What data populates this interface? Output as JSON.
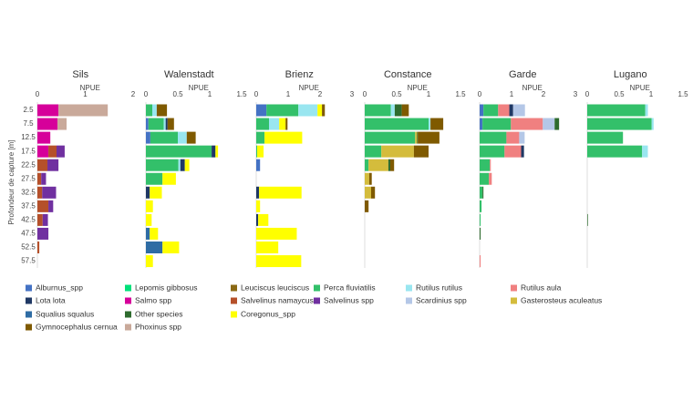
{
  "chart_data": {
    "type": "bar",
    "orientation": "horizontal",
    "y_label": "Profondeur de capture [m]",
    "categories": [
      "2.5",
      "7.5",
      "12.5",
      "17.5",
      "22.5",
      "27.5",
      "32.5",
      "37.5",
      "42.5",
      "47.5",
      "52.5",
      "57.5"
    ],
    "series": [
      {
        "name": "Alburnus_spp",
        "color": "#4472c4"
      },
      {
        "name": "Lepomis gibbosus",
        "color": "#00e07a"
      },
      {
        "name": "Leuciscus leuciscus",
        "color": "#8b6914"
      },
      {
        "name": "Perca fluviatilis",
        "color": "#33c06a"
      },
      {
        "name": "Rutilus rutilus",
        "color": "#99e6f0"
      },
      {
        "name": "Rutilus aula",
        "color": "#f08080"
      },
      {
        "name": "Lota lota",
        "color": "#1f3864"
      },
      {
        "name": "Salmo spp",
        "color": "#d6009a"
      },
      {
        "name": "Salvelinus namaycush",
        "color": "#b5502a"
      },
      {
        "name": "Salvelinus spp",
        "color": "#7030a0"
      },
      {
        "name": "Scardinius spp",
        "color": "#b4c7e7"
      },
      {
        "name": "Gasterosteus aculeatus",
        "color": "#d4bc3c"
      },
      {
        "name": "Squalius squalus",
        "color": "#2e6ca4"
      },
      {
        "name": "Other species",
        "color": "#2e6b2e"
      },
      {
        "name": "Coregonus_spp",
        "color": "#ffff00"
      },
      {
        "name": "Gymnocephalus cernua",
        "color": "#7f5a00"
      },
      {
        "name": "Phoxinus spp",
        "color": "#c9a99a"
      }
    ],
    "panels": [
      {
        "title": "Sils",
        "x_label": "NPUE",
        "xlim": [
          0,
          2
        ],
        "xticks": [
          0,
          1,
          2
        ],
        "values": [
          null,
          null,
          null,
          null,
          null,
          null,
          null,
          [
            0.44,
            0.42,
            0.27,
            0.23,
            null,
            null,
            null,
            null,
            null,
            null,
            null,
            null
          ],
          [
            null,
            null,
            null,
            0.17,
            0.21,
            0.08,
            0.1,
            0.23,
            0.11,
            null,
            0.04,
            null
          ],
          [
            null,
            null,
            null,
            0.17,
            0.23,
            0.1,
            0.29,
            0.1,
            0.11,
            0.23,
            null,
            null
          ],
          null,
          null,
          null,
          null,
          null,
          null,
          [
            1.03,
            0.19,
            null,
            null,
            null,
            null,
            null,
            null,
            null,
            null,
            null,
            null
          ]
        ]
      },
      {
        "title": "Walenstadt",
        "x_label": "NPUE",
        "xlim": [
          0,
          1.5
        ],
        "xticks": [
          0,
          0.5,
          1,
          1.5
        ],
        "values": [
          [
            null,
            0.04,
            0.07,
            null,
            null,
            null,
            null,
            null,
            null,
            null,
            null,
            null
          ],
          null,
          null,
          [
            0.1,
            0.24,
            0.43,
            1.03,
            0.51,
            0.26,
            null,
            null,
            null,
            null,
            null,
            null
          ],
          [
            0.07,
            0.03,
            0.14,
            null,
            0.03,
            null,
            null,
            null,
            null,
            null,
            null,
            null
          ],
          null,
          [
            null,
            0.03,
            null,
            0.06,
            0.07,
            null,
            0.06,
            null,
            null,
            null,
            null,
            null
          ],
          null,
          null,
          null,
          null,
          null,
          [
            null,
            null,
            null,
            null,
            null,
            null,
            null,
            null,
            null,
            0.06,
            0.26,
            null
          ],
          null,
          [
            null,
            null,
            null,
            0.04,
            0.07,
            0.21,
            0.19,
            0.11,
            0.09,
            0.13,
            0.26,
            0.11
          ],
          [
            0.16,
            0.1,
            0.14,
            null,
            null,
            null,
            null,
            null,
            null,
            null,
            null,
            null
          ],
          null
        ]
      },
      {
        "title": "Brienz",
        "x_label": "NPUE",
        "xlim": [
          0,
          3
        ],
        "xticks": [
          0,
          1,
          2,
          3
        ],
        "values": [
          [
            0.32,
            null,
            null,
            null,
            0.12,
            null,
            null,
            null,
            null,
            null,
            null,
            null
          ],
          null,
          null,
          [
            1.0,
            0.4,
            0.26,
            0.03,
            null,
            null,
            null,
            null,
            null,
            null,
            null,
            null
          ],
          [
            0.6,
            0.32,
            null,
            null,
            null,
            null,
            null,
            null,
            null,
            null,
            null,
            null
          ],
          null,
          [
            null,
            null,
            null,
            null,
            null,
            null,
            0.09,
            null,
            0.06,
            null,
            null,
            null
          ],
          null,
          null,
          null,
          null,
          null,
          null,
          null,
          [
            0.14,
            0.2,
            1.18,
            0.2,
            null,
            null,
            1.33,
            0.12,
            0.32,
            1.27,
            0.69,
            1.41
          ],
          [
            0.09,
            0.06,
            null,
            null,
            null,
            null,
            null,
            null,
            null,
            null,
            null,
            null
          ],
          null
        ]
      },
      {
        "title": "Constance",
        "x_label": "NPUE",
        "xlim": [
          0,
          1.5
        ],
        "xticks": [
          0,
          0.5,
          1,
          1.5
        ],
        "values": [
          null,
          null,
          null,
          [
            0.41,
            1.0,
            0.79,
            0.26,
            0.06,
            null,
            null,
            null,
            null,
            null,
            null,
            null
          ],
          [
            0.06,
            0.03,
            null,
            null,
            null,
            null,
            null,
            null,
            null,
            null,
            null,
            null
          ],
          null,
          null,
          null,
          null,
          null,
          null,
          [
            null,
            null,
            0.03,
            0.51,
            0.31,
            0.07,
            0.1,
            null,
            null,
            null,
            null,
            null
          ],
          null,
          [
            0.11,
            null,
            0.01,
            null,
            0.03,
            null,
            null,
            null,
            null,
            null,
            null,
            null
          ],
          null,
          [
            0.11,
            0.2,
            0.34,
            0.23,
            0.06,
            0.04,
            0.06,
            0.06,
            null,
            null,
            null,
            null
          ],
          null
        ]
      },
      {
        "title": "Garde",
        "x_label": "NPUE",
        "xlim": [
          0,
          3
        ],
        "xticks": [
          0,
          1,
          2,
          3
        ],
        "values": [
          [
            0.12,
            0.09,
            null,
            null,
            null,
            null,
            null,
            null,
            null,
            null,
            null,
            null
          ],
          null,
          null,
          [
            0.46,
            0.89,
            0.84,
            0.78,
            0.32,
            0.29,
            0.09,
            0.06,
            0.03,
            null,
            null,
            null
          ],
          null,
          [
            0.35,
            1.0,
            0.4,
            0.52,
            0.03,
            0.09,
            null,
            null,
            null,
            null,
            null,
            0.03
          ],
          [
            0.12,
            null,
            null,
            0.09,
            null,
            null,
            null,
            null,
            null,
            null,
            null,
            null
          ],
          null,
          null,
          null,
          [
            0.37,
            0.37,
            0.17,
            null,
            null,
            null,
            null,
            null,
            null,
            null,
            null,
            null
          ],
          null,
          null,
          [
            null,
            0.14,
            null,
            null,
            null,
            null,
            0.03,
            null,
            null,
            0.03,
            null,
            null
          ],
          null,
          null,
          null
        ]
      },
      {
        "title": "Lugano",
        "x_label": "NPUE",
        "xlim": [
          0,
          1.5
        ],
        "xticks": [
          0,
          0.5,
          1,
          1.5
        ],
        "values": [
          null,
          null,
          null,
          [
            0.91,
            1.01,
            0.56,
            0.86,
            null,
            null,
            null,
            null,
            null,
            null,
            null,
            null
          ],
          [
            0.04,
            0.03,
            null,
            0.09,
            null,
            null,
            null,
            null,
            null,
            null,
            null,
            null
          ],
          null,
          null,
          null,
          null,
          null,
          null,
          null,
          null,
          [
            null,
            null,
            null,
            null,
            null,
            null,
            null,
            null,
            0.01,
            null,
            null,
            null
          ],
          null,
          null,
          null
        ]
      }
    ]
  }
}
